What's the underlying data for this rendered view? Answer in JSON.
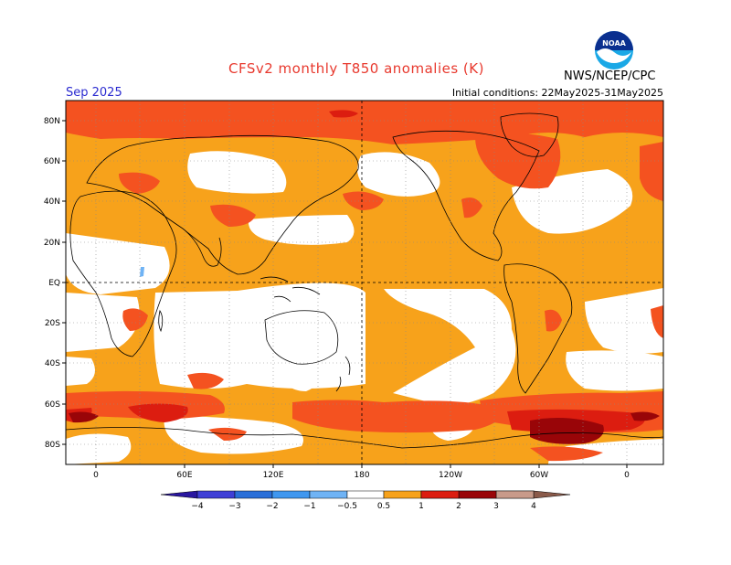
{
  "title": "CFSv2 monthly T850 anomalies (K)",
  "agency": "NWS/NCEP/CPC",
  "valid_month": "Sep 2025",
  "initial_conditions": "Initial conditions: 22May2025-31May2025",
  "logo_text": "NOAA",
  "lat_labels": [
    "80N",
    "60N",
    "40N",
    "20N",
    "EQ",
    "20S",
    "40S",
    "60S",
    "80S"
  ],
  "lon_labels": [
    "0",
    "60E",
    "120E",
    "180",
    "120W",
    "60W",
    "0"
  ],
  "colorbar": {
    "labels": [
      "−4",
      "−3",
      "−2",
      "−1",
      "−0.5",
      "0.5",
      "1",
      "2",
      "3",
      "4"
    ],
    "colors": [
      "#2a17a0",
      "#3f3fd6",
      "#2a6fd8",
      "#3f97ef",
      "#6fb3f5",
      "#ffffff",
      "#f7a21b",
      "#f45220",
      "#dc1d10",
      "#990508",
      "#c89a8a",
      "#8a5a4a"
    ]
  },
  "legend_colors": {
    "weak_warm": "#f7a21b",
    "moderate_warm": "#f45220",
    "strong_warm": "#dc1d10",
    "very_strong_warm": "#990508",
    "weak_cool": "#6fb3f5"
  }
}
